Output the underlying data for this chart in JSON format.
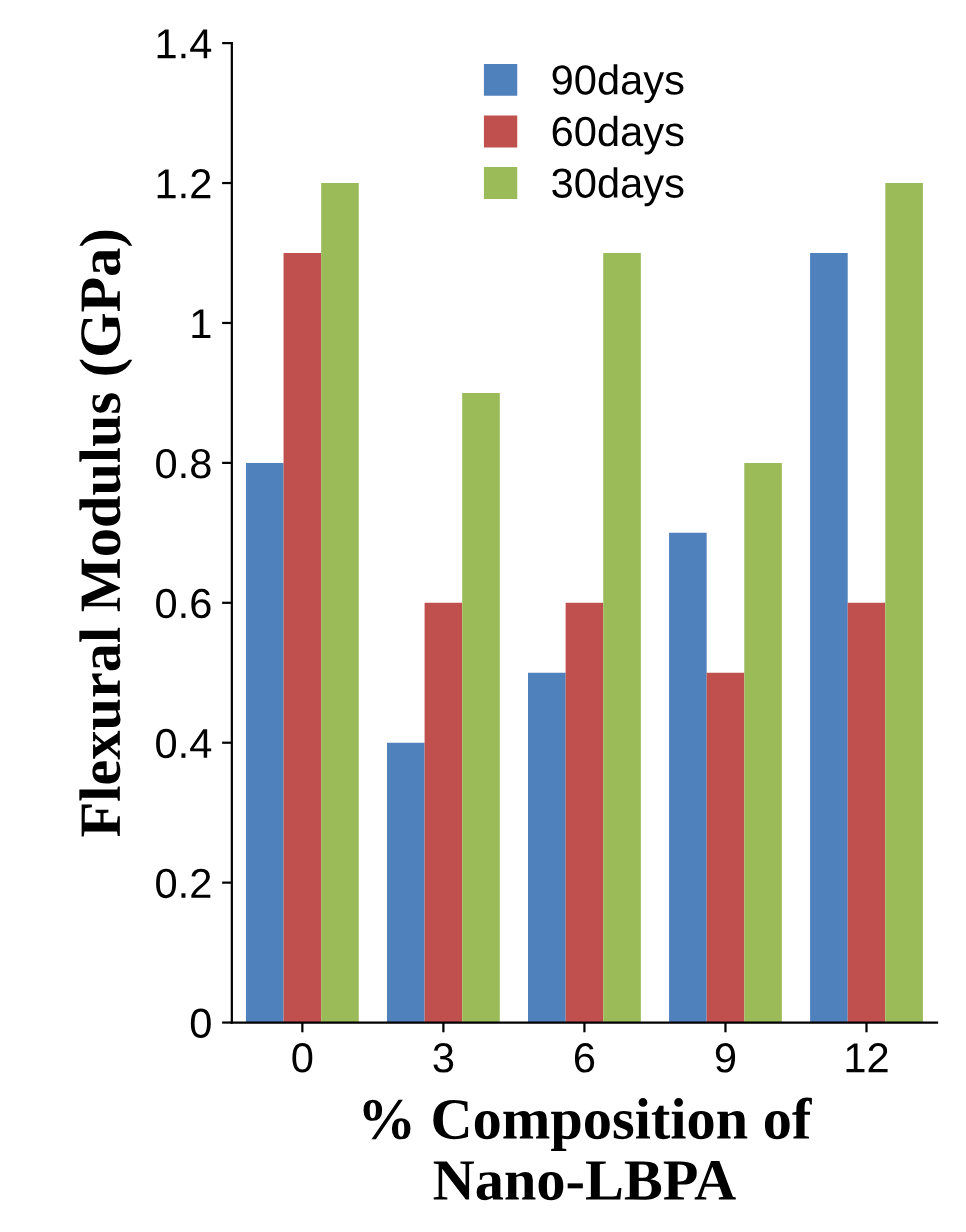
{
  "chart_data": {
    "type": "bar",
    "xlabel": "% Composition of Nano-LBPA",
    "ylabel": "Flexural Modulus (GPa)",
    "categories": [
      "0",
      "3",
      "6",
      "9",
      "12"
    ],
    "series": [
      {
        "name": "90days",
        "color": "#4f81bd",
        "values": [
          0.8,
          0.4,
          0.5,
          0.7,
          1.1
        ]
      },
      {
        "name": "60days",
        "color": "#c0504d",
        "values": [
          1.1,
          0.6,
          0.6,
          0.5,
          0.6
        ]
      },
      {
        "name": "30days",
        "color": "#9bbb59",
        "values": [
          1.2,
          0.9,
          1.1,
          0.8,
          1.2
        ]
      }
    ],
    "ylim": [
      0,
      1.4
    ],
    "yticks": [
      0,
      0.2,
      0.4,
      0.6,
      0.8,
      1,
      1.2,
      1.4
    ],
    "grid": false,
    "legend": "top"
  }
}
